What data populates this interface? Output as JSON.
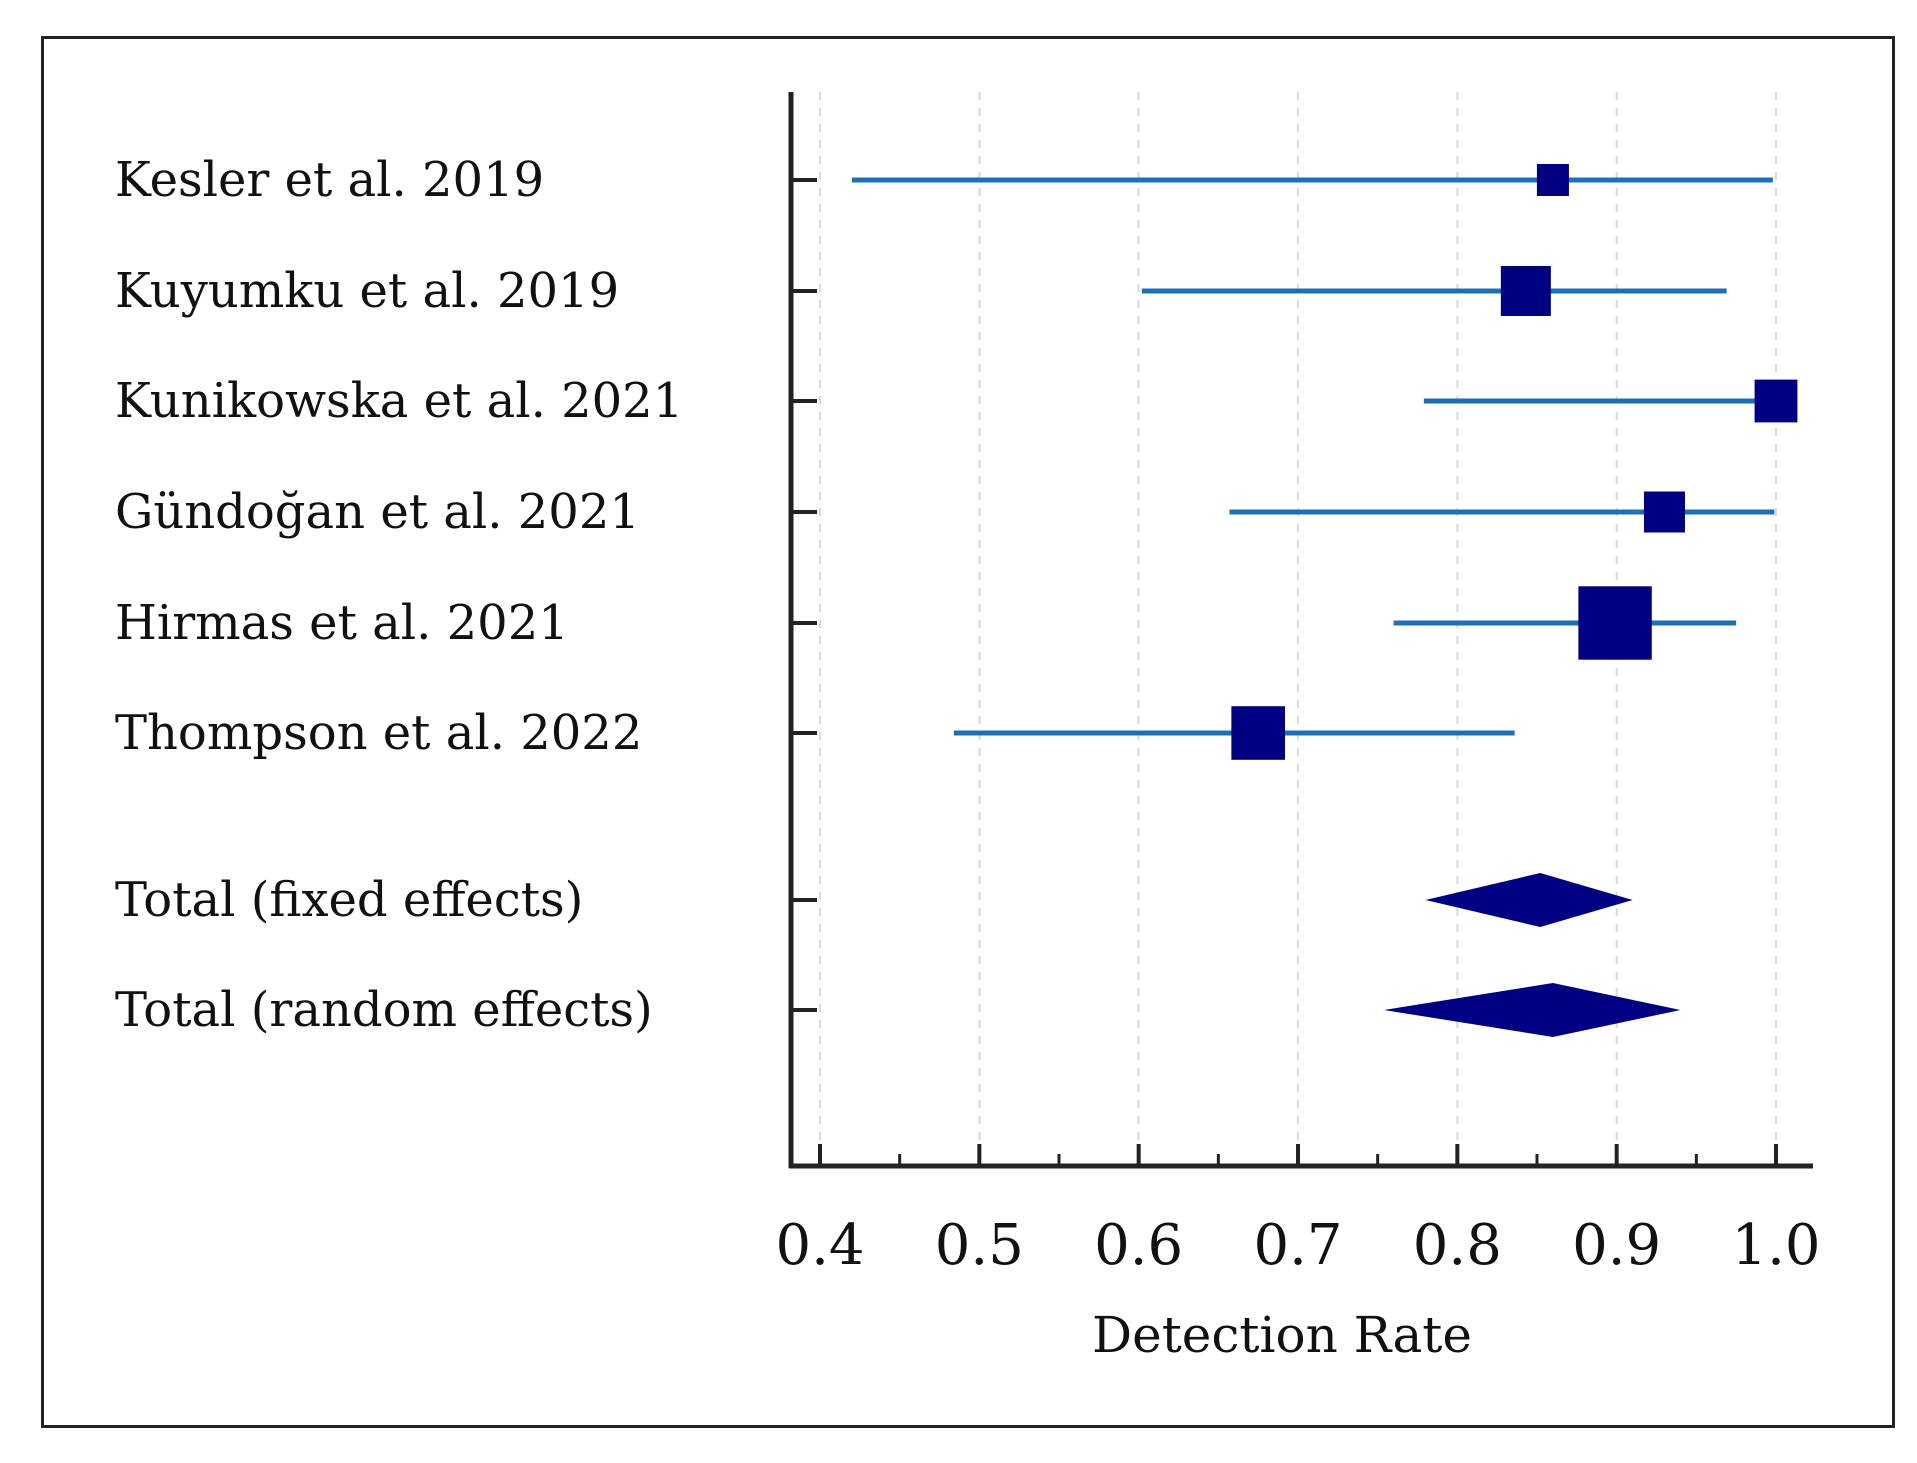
{
  "chart_data": {
    "type": "forest",
    "xlabel": "Detection Rate",
    "xlim": [
      0.4,
      1.0
    ],
    "x_ticks": [
      "0.4",
      "0.5",
      "0.6",
      "0.7",
      "0.8",
      "0.9",
      "1.0"
    ],
    "x_tick_values": [
      0.4,
      0.5,
      0.6,
      0.7,
      0.8,
      0.9,
      1.0
    ],
    "studies": [
      {
        "label": "Kesler et al. 2019",
        "estimate": 0.86,
        "ci_low": 0.42,
        "ci_high": 0.998,
        "weight": 1
      },
      {
        "label": "Kuyumku et al. 2019",
        "estimate": 0.843,
        "ci_low": 0.602,
        "ci_high": 0.969,
        "weight": 2
      },
      {
        "label": "Kunikowska et al. 2021",
        "estimate": 1.0,
        "ci_low": 0.779,
        "ci_high": 1.0,
        "weight": 1.6
      },
      {
        "label": "Gündoğan et al. 2021",
        "estimate": 0.93,
        "ci_low": 0.657,
        "ci_high": 0.999,
        "weight": 1.5
      },
      {
        "label": "Hirmas et al. 2021",
        "estimate": 0.899,
        "ci_low": 0.76,
        "ci_high": 0.975,
        "weight": 3.3
      },
      {
        "label": "Thompson et al. 2022",
        "estimate": 0.675,
        "ci_low": 0.484,
        "ci_high": 0.836,
        "weight": 2.2
      }
    ],
    "pooled": [
      {
        "label": "Total (fixed effects)",
        "estimate": 0.852,
        "ci_low": 0.78,
        "ci_high": 0.91
      },
      {
        "label": "Total (random effects)",
        "estimate": 0.86,
        "ci_low": 0.754,
        "ci_high": 0.94
      }
    ],
    "colors": {
      "ci_line": "#1f6fb5",
      "marker": "#000080",
      "axis": "#222222",
      "grid": "#d9d9d9"
    }
  }
}
